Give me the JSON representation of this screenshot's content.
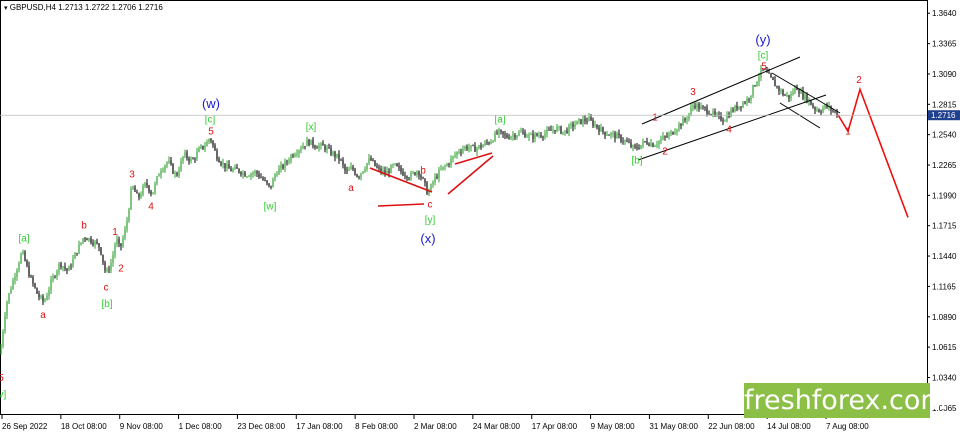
{
  "header": {
    "symbol": "GBPUSD,H4",
    "ohlc": "1.2713 1.2722 1.2706 1.2716"
  },
  "watermark": "freshforex.com",
  "colors": {
    "bull": "#2ca02c",
    "bear": "#000000",
    "wave_red": "#dd1111",
    "wave_green": "#33cc33",
    "wave_blue": "#1a1acc",
    "projection": "#ee1111",
    "price_box": "#1f3f8f",
    "logo_bg": "#8cbf45"
  },
  "chart_data": {
    "type": "candlestick",
    "ylim": [
      1.0,
      1.376
    ],
    "price_labels": [
      "1.3640",
      "1.3365",
      "1.3090",
      "1.2815",
      "1.2540",
      "1.2265",
      "1.1990",
      "1.1715",
      "1.1440",
      "1.1165",
      "1.0890",
      "1.0615",
      "1.0340",
      "1.0065"
    ],
    "current_price": "1.2716",
    "x_tick_labels": [
      "26 Sep 2022",
      "18 Oct 08:00",
      "9 Nov 08:00",
      "1 Dec 08:00",
      "23 Dec 08:00",
      "17 Jan 08:00",
      "8 Feb 08:00",
      "2 Mar 08:00",
      "24 Mar 08:00",
      "17 Apr 08:00",
      "9 May 08:00",
      "31 May 08:00",
      "22 Jun 08:00",
      "14 Jul 08:00",
      "7 Aug 08:00"
    ],
    "price_path": [
      [
        0,
        1.055
      ],
      [
        6,
        1.1
      ],
      [
        14,
        1.125
      ],
      [
        22,
        1.148
      ],
      [
        30,
        1.125
      ],
      [
        38,
        1.108
      ],
      [
        44,
        1.102
      ],
      [
        52,
        1.122
      ],
      [
        60,
        1.138
      ],
      [
        68,
        1.13
      ],
      [
        76,
        1.147
      ],
      [
        84,
        1.162
      ],
      [
        92,
        1.158
      ],
      [
        100,
        1.152
      ],
      [
        106,
        1.127
      ],
      [
        112,
        1.14
      ],
      [
        116,
        1.16
      ],
      [
        120,
        1.15
      ],
      [
        126,
        1.17
      ],
      [
        132,
        1.208
      ],
      [
        138,
        1.196
      ],
      [
        146,
        1.21
      ],
      [
        152,
        1.2
      ],
      [
        160,
        1.222
      ],
      [
        168,
        1.23
      ],
      [
        176,
        1.216
      ],
      [
        184,
        1.236
      ],
      [
        192,
        1.23
      ],
      [
        200,
        1.241
      ],
      [
        206,
        1.245
      ],
      [
        210,
        1.252
      ],
      [
        216,
        1.236
      ],
      [
        222,
        1.228
      ],
      [
        230,
        1.222
      ],
      [
        238,
        1.222
      ],
      [
        246,
        1.218
      ],
      [
        256,
        1.22
      ],
      [
        264,
        1.212
      ],
      [
        270,
        1.205
      ],
      [
        276,
        1.22
      ],
      [
        284,
        1.226
      ],
      [
        292,
        1.236
      ],
      [
        300,
        1.242
      ],
      [
        308,
        1.248
      ],
      [
        316,
        1.244
      ],
      [
        324,
        1.243
      ],
      [
        332,
        1.237
      ],
      [
        340,
        1.232
      ],
      [
        346,
        1.219
      ],
      [
        352,
        1.224
      ],
      [
        358,
        1.216
      ],
      [
        364,
        1.224
      ],
      [
        370,
        1.232
      ],
      [
        378,
        1.222
      ],
      [
        386,
        1.219
      ],
      [
        394,
        1.226
      ],
      [
        402,
        1.22
      ],
      [
        410,
        1.216
      ],
      [
        418,
        1.222
      ],
      [
        424,
        1.21
      ],
      [
        428,
        1.2
      ],
      [
        434,
        1.213
      ],
      [
        440,
        1.221
      ],
      [
        446,
        1.226
      ],
      [
        452,
        1.232
      ],
      [
        458,
        1.239
      ],
      [
        466,
        1.243
      ],
      [
        474,
        1.241
      ],
      [
        482,
        1.244
      ],
      [
        490,
        1.248
      ],
      [
        498,
        1.256
      ],
      [
        506,
        1.252
      ],
      [
        514,
        1.254
      ],
      [
        522,
        1.256
      ],
      [
        530,
        1.252
      ],
      [
        540,
        1.254
      ],
      [
        548,
        1.256
      ],
      [
        556,
        1.26
      ],
      [
        564,
        1.256
      ],
      [
        572,
        1.262
      ],
      [
        580,
        1.266
      ],
      [
        588,
        1.268
      ],
      [
        596,
        1.262
      ],
      [
        604,
        1.256
      ],
      [
        612,
        1.254
      ],
      [
        620,
        1.251
      ],
      [
        628,
        1.246
      ],
      [
        634,
        1.241
      ],
      [
        640,
        1.244
      ],
      [
        646,
        1.248
      ],
      [
        654,
        1.245
      ],
      [
        662,
        1.25
      ],
      [
        670,
        1.254
      ],
      [
        678,
        1.262
      ],
      [
        686,
        1.268
      ],
      [
        694,
        1.282
      ],
      [
        700,
        1.278
      ],
      [
        708,
        1.276
      ],
      [
        716,
        1.27
      ],
      [
        724,
        1.268
      ],
      [
        732,
        1.276
      ],
      [
        740,
        1.281
      ],
      [
        748,
        1.286
      ],
      [
        756,
        1.302
      ],
      [
        762,
        1.313
      ],
      [
        766,
        1.31
      ],
      [
        772,
        1.303
      ],
      [
        778,
        1.296
      ],
      [
        784,
        1.29
      ],
      [
        790,
        1.288
      ],
      [
        796,
        1.298
      ],
      [
        802,
        1.29
      ],
      [
        808,
        1.286
      ],
      [
        814,
        1.278
      ],
      [
        820,
        1.276
      ],
      [
        826,
        1.28
      ],
      [
        832,
        1.276
      ],
      [
        838,
        1.272
      ]
    ],
    "projection_path": [
      [
        838,
        1.272
      ],
      [
        848,
        1.257
      ],
      [
        860,
        1.295
      ],
      [
        908,
        1.179
      ]
    ],
    "wave_labels": [
      {
        "text": "5",
        "x": 1,
        "y": 1.031,
        "color": "red"
      },
      {
        "text": "[v]",
        "x": 1,
        "y": 1.016,
        "color": "green"
      },
      {
        "text": "[a]",
        "x": 24,
        "y": 1.157,
        "color": "green"
      },
      {
        "text": "a",
        "x": 43,
        "y": 1.088,
        "color": "red"
      },
      {
        "text": "b",
        "x": 84,
        "y": 1.169,
        "color": "red"
      },
      {
        "text": "c",
        "x": 106,
        "y": 1.113,
        "color": "red"
      },
      {
        "text": "[b]",
        "x": 107,
        "y": 1.098,
        "color": "green"
      },
      {
        "text": "1",
        "x": 115,
        "y": 1.163,
        "color": "red"
      },
      {
        "text": "2",
        "x": 121,
        "y": 1.13,
        "color": "red"
      },
      {
        "text": "3",
        "x": 132,
        "y": 1.215,
        "color": "red"
      },
      {
        "text": "4",
        "x": 151,
        "y": 1.186,
        "color": "red"
      },
      {
        "text": "(w)",
        "x": 211,
        "y": 1.278,
        "color": "blue"
      },
      {
        "text": "[c]",
        "x": 210,
        "y": 1.265,
        "color": "green"
      },
      {
        "text": "5",
        "x": 211,
        "y": 1.254,
        "color": "red"
      },
      {
        "text": "[w]",
        "x": 270,
        "y": 1.186,
        "color": "green"
      },
      {
        "text": "[x]",
        "x": 311,
        "y": 1.258,
        "color": "green"
      },
      {
        "text": "a",
        "x": 351,
        "y": 1.203,
        "color": "red"
      },
      {
        "text": "b",
        "x": 423,
        "y": 1.219,
        "color": "red"
      },
      {
        "text": "c",
        "x": 430,
        "y": 1.188,
        "color": "red"
      },
      {
        "text": "[y]",
        "x": 430,
        "y": 1.174,
        "color": "green"
      },
      {
        "text": "(x)",
        "x": 428,
        "y": 1.156,
        "color": "blue"
      },
      {
        "text": "[a]",
        "x": 500,
        "y": 1.265,
        "color": "green"
      },
      {
        "text": "[b]",
        "x": 637,
        "y": 1.228,
        "color": "green"
      },
      {
        "text": "1",
        "x": 655,
        "y": 1.267,
        "color": "red"
      },
      {
        "text": "2",
        "x": 665,
        "y": 1.236,
        "color": "red"
      },
      {
        "text": "3",
        "x": 693,
        "y": 1.29,
        "color": "red"
      },
      {
        "text": "4",
        "x": 729,
        "y": 1.256,
        "color": "red"
      },
      {
        "text": "(y)",
        "x": 763,
        "y": 1.336,
        "color": "blue"
      },
      {
        "text": "[c]",
        "x": 763,
        "y": 1.323,
        "color": "green"
      },
      {
        "text": "5",
        "x": 764,
        "y": 1.313,
        "color": "red"
      },
      {
        "text": "2",
        "x": 859,
        "y": 1.301,
        "color": "red"
      },
      {
        "text": "1",
        "x": 848,
        "y": 1.254,
        "color": "red"
      }
    ]
  }
}
